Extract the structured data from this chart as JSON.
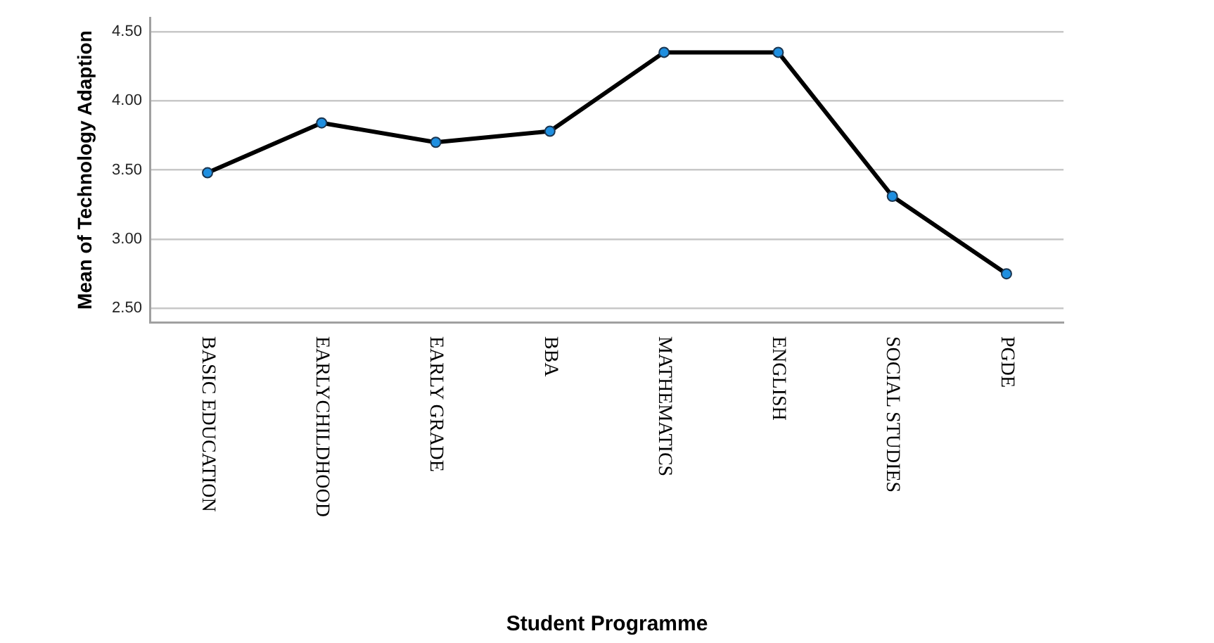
{
  "chart_data": {
    "type": "line",
    "xlabel": "Student Programme",
    "ylabel": "Mean of Technology Adaption",
    "categories": [
      "BASIC EDUCATION",
      "EARLYCHILDHOOD",
      "EARLY GRADE",
      "BBA",
      "MATHEMATICS",
      "ENGLISH",
      "SOCIAL STUDIES",
      "PGDE"
    ],
    "series": [
      {
        "color": "#000000",
        "values": [
          3.48,
          3.84,
          3.7,
          3.78,
          4.35,
          4.35,
          3.31,
          2.75
        ]
      }
    ],
    "ylim": [
      2.4,
      4.6
    ],
    "yticks": [
      {
        "value": 2.5,
        "label": "2.50"
      },
      {
        "value": 3,
        "label": "3.00"
      },
      {
        "value": 3.5,
        "label": "3.50"
      },
      {
        "value": 4,
        "label": "4.00"
      },
      {
        "value": 4.5,
        "label": "4.50"
      }
    ],
    "grid": "y",
    "legend": false,
    "marker": "circle",
    "line_style": "solid"
  }
}
